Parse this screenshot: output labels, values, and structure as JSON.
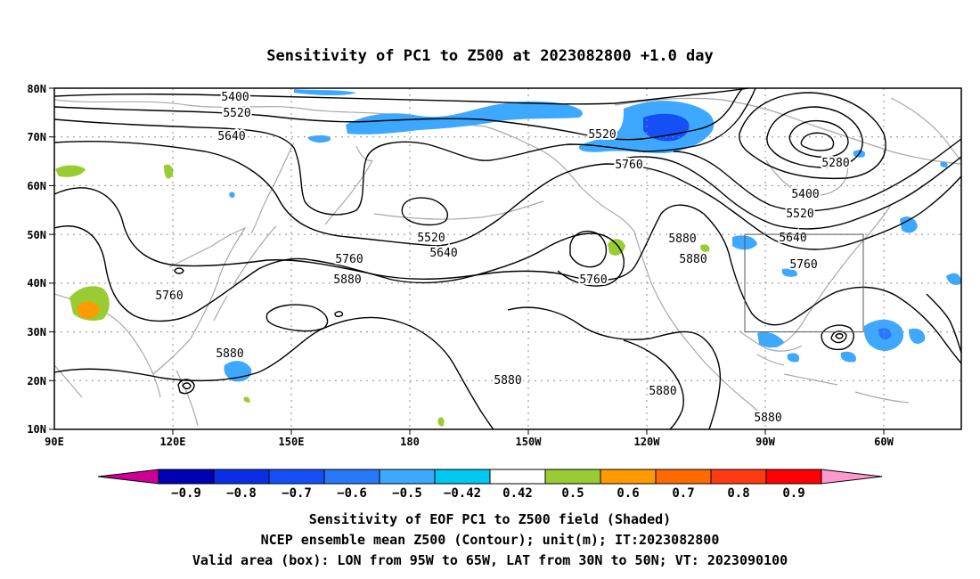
{
  "title": "Sensitivity of PC1 to Z500 at 2023082800 +1.0 day",
  "lat_labels": [
    "80N",
    "70N",
    "60N",
    "50N",
    "40N",
    "30N",
    "20N",
    "10N"
  ],
  "lon_labels": [
    "90E",
    "120E",
    "150E",
    "180",
    "150W",
    "120W",
    "90W",
    "60W"
  ],
  "contour_labels": [
    {
      "text": "5400"
    },
    {
      "text": "5520"
    },
    {
      "text": "5640"
    },
    {
      "text": "5520"
    },
    {
      "text": "5760"
    },
    {
      "text": "5280"
    },
    {
      "text": "5400"
    },
    {
      "text": "5520"
    },
    {
      "text": "5640"
    },
    {
      "text": "5760"
    },
    {
      "text": "5520"
    },
    {
      "text": "5640"
    },
    {
      "text": "5760"
    },
    {
      "text": "5880"
    },
    {
      "text": "5760"
    },
    {
      "text": "5880"
    },
    {
      "text": "5880"
    },
    {
      "text": "5760"
    },
    {
      "text": "5880"
    },
    {
      "text": "5880"
    },
    {
      "text": "5880"
    },
    {
      "text": "5880"
    }
  ],
  "colorbar": {
    "labels": [
      "−0.9",
      "−0.8",
      "−0.7",
      "−0.6",
      "−0.5",
      "−0.42",
      "0.42",
      "0.5",
      "0.6",
      "0.7",
      "0.8",
      "0.9"
    ],
    "colors": [
      "#0000b4",
      "#0a2ee6",
      "#1450f5",
      "#2878fa",
      "#3ca8ff",
      "#00c8f0",
      "#ffffff",
      "#99cc33",
      "#ff9a00",
      "#ff6a00",
      "#ff3a10",
      "#ff0000"
    ],
    "left_tip_color": "#cc0099",
    "right_tip_color": "#ff99cc"
  },
  "footer": [
    "Sensitivity of EOF PC1 to Z500 field (Shaded)",
    "NCEP ensemble mean Z500 (Contour); unit(m); IT:2023082800",
    "Valid area (box): LON from 95W to 65W, LAT from 30N to 50N; VT: 2023090100"
  ],
  "colors": {
    "coast": "#a8a8a8",
    "contour": "#000000",
    "grid": "#8c8c8c",
    "blue_shade": "#2aa8ff",
    "blue_dark": "#1450f5",
    "green_shade": "#99cc33",
    "orange_shade": "#ff9a00"
  }
}
